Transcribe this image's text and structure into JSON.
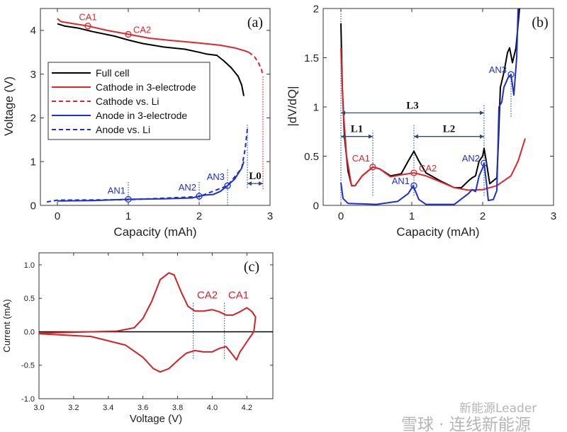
{
  "chart_data": [
    {
      "id": "a",
      "type": "line",
      "panel_label": "(a)",
      "xlabel": "Capacity (mAh)",
      "ylabel": "Voltage (V)",
      "xlim": [
        -0.24,
        3
      ],
      "ylim": [
        0,
        4.5
      ],
      "xticks": [
        0,
        1,
        2,
        3
      ],
      "yticks": [
        0,
        1,
        2,
        3,
        4
      ],
      "legend_position": "center-left",
      "series": [
        {
          "name": "Full cell",
          "color": "#000000",
          "dash": "solid",
          "x": [
            0,
            0.1,
            0.3,
            0.5,
            0.8,
            1.0,
            1.2,
            1.5,
            1.8,
            2.0,
            2.1,
            2.25,
            2.35,
            2.45,
            2.55,
            2.6,
            2.63
          ],
          "y": [
            4.15,
            4.1,
            4.05,
            3.97,
            3.87,
            3.78,
            3.7,
            3.62,
            3.57,
            3.5,
            3.46,
            3.43,
            3.3,
            3.15,
            2.95,
            2.75,
            2.5
          ]
        },
        {
          "name": "Cathode in 3-electrode",
          "color": "#e0262a",
          "dash": "solid",
          "x": [
            0,
            0.05,
            0.2,
            0.43,
            0.7,
            1.0,
            1.3,
            1.6,
            2.0,
            2.3,
            2.5,
            2.65,
            2.7
          ],
          "y": [
            4.27,
            4.2,
            4.16,
            4.1,
            4.0,
            3.91,
            3.82,
            3.77,
            3.71,
            3.66,
            3.6,
            3.53,
            3.5
          ]
        },
        {
          "name": "Cathode vs. Li",
          "color": "#e0262a",
          "dash": "dashed",
          "x": [
            2.7,
            2.78,
            2.84,
            2.88,
            2.9
          ],
          "y": [
            3.5,
            3.4,
            3.25,
            3.1,
            2.97
          ]
        },
        {
          "name": "Anode in 3-electrode",
          "color": "#1f2fd0",
          "dash": "solid",
          "x": [
            0,
            0.5,
            1,
            1.5,
            1.9,
            2,
            2.1,
            2.2,
            2.3,
            2.4,
            2.5,
            2.6,
            2.63
          ],
          "y": [
            0.1,
            0.11,
            0.14,
            0.15,
            0.17,
            0.21,
            0.24,
            0.25,
            0.32,
            0.45,
            0.6,
            0.85,
            1.0
          ]
        },
        {
          "name": "Anode vs. Li",
          "color": "#1f2fd0",
          "dash": "dashed",
          "x": [
            -0.15,
            0,
            1,
            2,
            2.4,
            2.6,
            2.65,
            2.68
          ],
          "y": [
            0.08,
            0.12,
            0.13,
            0.2,
            0.45,
            0.85,
            1.3,
            1.75
          ]
        }
      ],
      "markers": [
        {
          "label": "CA1",
          "x": 0.43,
          "y": 4.1,
          "color": "#e0262a",
          "label_pos": "top"
        },
        {
          "label": "CA2",
          "x": 1.0,
          "y": 3.91,
          "color": "#e0262a",
          "label_pos": "right"
        },
        {
          "label": "AN1",
          "x": 1.0,
          "y": 0.14,
          "color": "#1f2fd0",
          "label_pos": "top-left"
        },
        {
          "label": "AN2",
          "x": 2.0,
          "y": 0.21,
          "color": "#1f2fd0",
          "label_pos": "top-left"
        },
        {
          "label": "AN3",
          "x": 2.4,
          "y": 0.45,
          "color": "#1f2fd0",
          "label_pos": "top-left"
        }
      ],
      "guides": [
        {
          "x": 1.0,
          "y": [
            0,
            0.55
          ],
          "color": "#2a5caa"
        },
        {
          "x": 2.0,
          "y": [
            0,
            0.55
          ],
          "color": "#2a5caa"
        },
        {
          "x": 2.4,
          "y": [
            0,
            0.85
          ],
          "color": "#2a5caa"
        },
        {
          "x": 2.68,
          "y": [
            0.4,
            1.85
          ],
          "color": "#2a5caa"
        },
        {
          "x": 2.9,
          "y": [
            0.37,
            2.97
          ],
          "color": "#e0262a"
        }
      ],
      "spans": [
        {
          "label": "L0",
          "x": [
            2.68,
            2.9
          ],
          "y": 0.5
        }
      ]
    },
    {
      "id": "b",
      "type": "line",
      "panel_label": "(b)",
      "xlabel": "Capacity (mAh)",
      "ylabel": "|dV/dQ|",
      "xlim": [
        -0.25,
        3
      ],
      "ylim": [
        0,
        2
      ],
      "xticks": [
        0,
        1,
        2,
        3
      ],
      "yticks": [
        0,
        0.5,
        1,
        1.5,
        2
      ],
      "series": [
        {
          "name": "Full cell",
          "color": "#000000",
          "dash": "solid",
          "x": [
            0,
            0.02,
            0.05,
            0.1,
            0.15,
            0.2,
            0.3,
            0.45,
            0.55,
            0.7,
            0.85,
            0.95,
            1.03,
            1.1,
            1.2,
            1.4,
            1.6,
            1.7,
            1.8,
            1.85,
            1.9,
            1.95,
            2.0,
            2.02,
            2.05,
            2.1,
            2.2,
            2.22,
            2.25,
            2.3,
            2.35,
            2.38,
            2.42,
            2.47,
            2.52
          ],
          "y": [
            1.85,
            1.2,
            0.7,
            0.35,
            0.2,
            0.2,
            0.3,
            0.39,
            0.37,
            0.3,
            0.32,
            0.45,
            0.55,
            0.45,
            0.33,
            0.25,
            0.18,
            0.18,
            0.25,
            0.28,
            0.3,
            0.45,
            0.5,
            0.58,
            0.45,
            0.22,
            0.28,
            0.6,
            1.2,
            1.35,
            1.55,
            1.6,
            1.45,
            1.6,
            2.0
          ]
        },
        {
          "name": "Cathode",
          "color": "#e0262a",
          "dash": "solid",
          "x": [
            0,
            0.03,
            0.08,
            0.15,
            0.2,
            0.3,
            0.45,
            0.55,
            0.7,
            0.85,
            1.03,
            1.2,
            1.4,
            1.6,
            1.8,
            2.0,
            2.2,
            2.4,
            2.5,
            2.6
          ],
          "y": [
            1.6,
            1.0,
            0.5,
            0.2,
            0.2,
            0.3,
            0.39,
            0.37,
            0.29,
            0.31,
            0.33,
            0.3,
            0.24,
            0.18,
            0.155,
            0.16,
            0.2,
            0.3,
            0.45,
            0.68
          ]
        },
        {
          "name": "Anode",
          "color": "#1f2fd0",
          "dash": "solid",
          "x": [
            0,
            0.03,
            0.1,
            0.5,
            0.8,
            0.95,
            1.02,
            1.1,
            1.2,
            1.6,
            1.8,
            1.85,
            1.9,
            1.95,
            2.0,
            2.02,
            2.05,
            2.08,
            2.15,
            2.2,
            2.23,
            2.27,
            2.3,
            2.36,
            2.4,
            2.44,
            2.48,
            2.5
          ],
          "y": [
            0.23,
            0.07,
            0.02,
            0.01,
            0.04,
            0.12,
            0.2,
            0.06,
            0.01,
            0.01,
            0.12,
            0.16,
            0.14,
            0.3,
            0.38,
            0.43,
            0.25,
            0.05,
            0.06,
            0.15,
            1.0,
            1.05,
            1.2,
            1.3,
            1.33,
            1.12,
            1.5,
            2.0
          ]
        }
      ],
      "markers": [
        {
          "label": "CA1",
          "x": 0.45,
          "y": 0.39,
          "color": "#e0262a",
          "label_pos": "top-left"
        },
        {
          "label": "CA2",
          "x": 1.03,
          "y": 0.33,
          "color": "#e0262a",
          "label_pos": "right"
        },
        {
          "label": "AN1",
          "x": 1.03,
          "y": 0.2,
          "color": "#1f2fd0",
          "label_pos": "left"
        },
        {
          "label": "AN2",
          "x": 2.02,
          "y": 0.43,
          "color": "#1f2fd0",
          "label_pos": "left"
        },
        {
          "label": "AN3",
          "x": 2.4,
          "y": 1.33,
          "color": "#1f2fd0",
          "label_pos": "left"
        }
      ],
      "guides": [
        {
          "x": 0,
          "y": [
            0,
            2
          ],
          "color": "#2a5caa"
        },
        {
          "x": 0.45,
          "y": [
            0.1,
            0.76
          ],
          "color": "#2a5caa"
        },
        {
          "x": 1.03,
          "y": [
            0.1,
            0.82
          ],
          "color": "#2a5caa"
        },
        {
          "x": 2.02,
          "y": [
            0.1,
            1.02
          ],
          "color": "#2a5caa"
        },
        {
          "x": 2.4,
          "y": [
            0.9,
            1.3
          ],
          "color": "#2a5caa"
        }
      ],
      "spans": [
        {
          "label": "L3",
          "x": [
            0,
            2.02
          ],
          "y": 0.94
        },
        {
          "label": "L1",
          "x": [
            0,
            0.45
          ],
          "y": 0.7
        },
        {
          "label": "L2",
          "x": [
            1.03,
            2.02
          ],
          "y": 0.7
        }
      ]
    },
    {
      "id": "c",
      "type": "line",
      "panel_label": "(c)",
      "xlabel": "Voltage (V)",
      "ylabel": "Current (mA)",
      "xlim": [
        3.0,
        4.35
      ],
      "ylim": [
        -1.0,
        1.18
      ],
      "xticks": [
        3.0,
        3.2,
        3.4,
        3.6,
        3.8,
        4.0,
        4.2
      ],
      "xtick_labels": [
        "3.0",
        "3.2",
        "3.4",
        "3.6",
        "3.8",
        "4.0",
        "4.2"
      ],
      "yticks": [
        -1.0,
        -0.5,
        0.0,
        0.5,
        1.0
      ],
      "ytick_labels": [
        "-1.0",
        "-0.5",
        "0.0",
        "0.5",
        "1.0"
      ],
      "series": [
        {
          "name": "CV",
          "color": "#d42025",
          "dash": "solid",
          "x": [
            3.0,
            3.3,
            3.45,
            3.55,
            3.6,
            3.65,
            3.7,
            3.75,
            3.78,
            3.82,
            3.86,
            3.9,
            3.95,
            4.0,
            4.04,
            4.08,
            4.12,
            4.16,
            4.2,
            4.23,
            4.25,
            4.24,
            4.2,
            4.16,
            4.14,
            4.12,
            4.08,
            4.04,
            4.0,
            3.95,
            3.9,
            3.85,
            3.8,
            3.75,
            3.7,
            3.66,
            3.6,
            3.5,
            3.3,
            3.0
          ],
          "y": [
            -0.02,
            0.0,
            0.01,
            0.06,
            0.2,
            0.45,
            0.78,
            0.88,
            0.85,
            0.6,
            0.38,
            0.31,
            0.31,
            0.33,
            0.3,
            0.25,
            0.25,
            0.3,
            0.36,
            0.3,
            0.22,
            0.0,
            -0.15,
            -0.3,
            -0.42,
            -0.35,
            -0.22,
            -0.25,
            -0.3,
            -0.3,
            -0.28,
            -0.32,
            -0.43,
            -0.55,
            -0.6,
            -0.55,
            -0.38,
            -0.2,
            -0.07,
            -0.03
          ]
        }
      ],
      "zero_line": true,
      "markers": [],
      "annotations": [
        {
          "label": "CA2",
          "x": 3.89,
          "y": 0.5,
          "color": "#d42025"
        },
        {
          "label": "CA1",
          "x": 4.07,
          "y": 0.5,
          "color": "#d42025"
        }
      ],
      "guides": [
        {
          "x": 3.89,
          "y": [
            -0.4,
            0.44
          ],
          "color": "#2a5caa"
        },
        {
          "x": 4.07,
          "y": [
            -0.4,
            0.44
          ],
          "color": "#2a5caa"
        }
      ],
      "spans": []
    }
  ],
  "watermark": {
    "line1": "新能源Leader",
    "line2": "雪球 · 连线新能源"
  }
}
